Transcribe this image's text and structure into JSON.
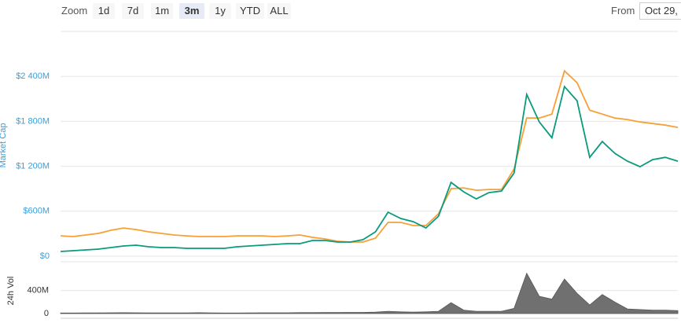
{
  "toolbar": {
    "zoom_label": "Zoom",
    "buttons": [
      "1d",
      "7d",
      "1m",
      "3m",
      "1y",
      "YTD",
      "ALL"
    ],
    "selected_index": 3,
    "from_label": "From",
    "from_value": "Oct 29,"
  },
  "chart_data": [
    {
      "type": "line",
      "ylabel": "Market Cap",
      "ylim": [
        0,
        3000000000.0
      ],
      "yticks": [
        {
          "value": 0,
          "label": "$0"
        },
        {
          "value": 600000000.0,
          "label": "$600M"
        },
        {
          "value": 1200000000.0,
          "label": "$1 200M"
        },
        {
          "value": 1800000000.0,
          "label": "$1 800M"
        },
        {
          "value": 2400000000.0,
          "label": "$2 400M"
        }
      ],
      "grid": true,
      "series": [
        {
          "color": "#f7a035",
          "values": [
            272000000.0,
            262000000.0,
            283000000.0,
            304000000.0,
            346000000.0,
            377000000.0,
            356000000.0,
            325000000.0,
            304000000.0,
            283000000.0,
            272000000.0,
            262000000.0,
            262000000.0,
            262000000.0,
            272000000.0,
            272000000.0,
            272000000.0,
            262000000.0,
            272000000.0,
            283000000.0,
            252000000.0,
            231000000.0,
            199000000.0,
            189000000.0,
            189000000.0,
            241000000.0,
            451000000.0,
            451000000.0,
            409000000.0,
            409000000.0,
            566000000.0,
            901000000.0,
            912000000.0,
            880000000.0,
            891000000.0,
            891000000.0,
            1163000000.0,
            1844000000.0,
            1844000000.0,
            1897000000.0,
            2473000000.0,
            2316000000.0,
            1949000000.0,
            1897000000.0,
            1844000000.0,
            1824000000.0,
            1792000000.0,
            1771000000.0,
            1750000000.0,
            1719000000.0
          ]
        },
        {
          "color": "#0a9a7c",
          "values": [
            63000000.0,
            73000000.0,
            84000000.0,
            94000000.0,
            115000000.0,
            136000000.0,
            147000000.0,
            126000000.0,
            115000000.0,
            115000000.0,
            105000000.0,
            105000000.0,
            105000000.0,
            105000000.0,
            126000000.0,
            136000000.0,
            147000000.0,
            157000000.0,
            168000000.0,
            168000000.0,
            210000000.0,
            210000000.0,
            189000000.0,
            189000000.0,
            220000000.0,
            325000000.0,
            587000000.0,
            503000000.0,
            461000000.0,
            377000000.0,
            534000000.0,
            985000000.0,
            859000000.0,
            765000000.0,
            849000000.0,
            870000000.0,
            1111000000.0,
            2159000000.0,
            1792000000.0,
            1582000000.0,
            2264000000.0,
            2075000000.0,
            1320000000.0,
            1530000000.0,
            1373000000.0,
            1268000000.0,
            1195000000.0,
            1289000000.0,
            1320000000.0,
            1268000000.0
          ]
        }
      ]
    },
    {
      "type": "area",
      "ylabel": "24h Vol",
      "ylim": [
        0,
        900000000.0
      ],
      "yticks": [
        0,
        {
          "value": 400000000.0,
          "label": "400M"
        }
      ],
      "grid": true,
      "color": "#707070",
      "values": [
        10000000.0,
        10000000.0,
        12000000.0,
        12000000.0,
        14000000.0,
        15000000.0,
        14000000.0,
        12000000.0,
        12000000.0,
        12000000.0,
        12000000.0,
        15000000.0,
        12000000.0,
        10000000.0,
        10000000.0,
        12000000.0,
        14000000.0,
        14000000.0,
        14000000.0,
        16000000.0,
        16000000.0,
        18000000.0,
        18000000.0,
        20000000.0,
        20000000.0,
        25000000.0,
        40000000.0,
        30000000.0,
        25000000.0,
        30000000.0,
        40000000.0,
        190000000.0,
        60000000.0,
        40000000.0,
        40000000.0,
        40000000.0,
        90000000.0,
        700000000.0,
        300000000.0,
        250000000.0,
        600000000.0,
        350000000.0,
        150000000.0,
        330000000.0,
        200000000.0,
        80000000.0,
        70000000.0,
        60000000.0,
        60000000.0,
        50000000.0
      ]
    }
  ]
}
